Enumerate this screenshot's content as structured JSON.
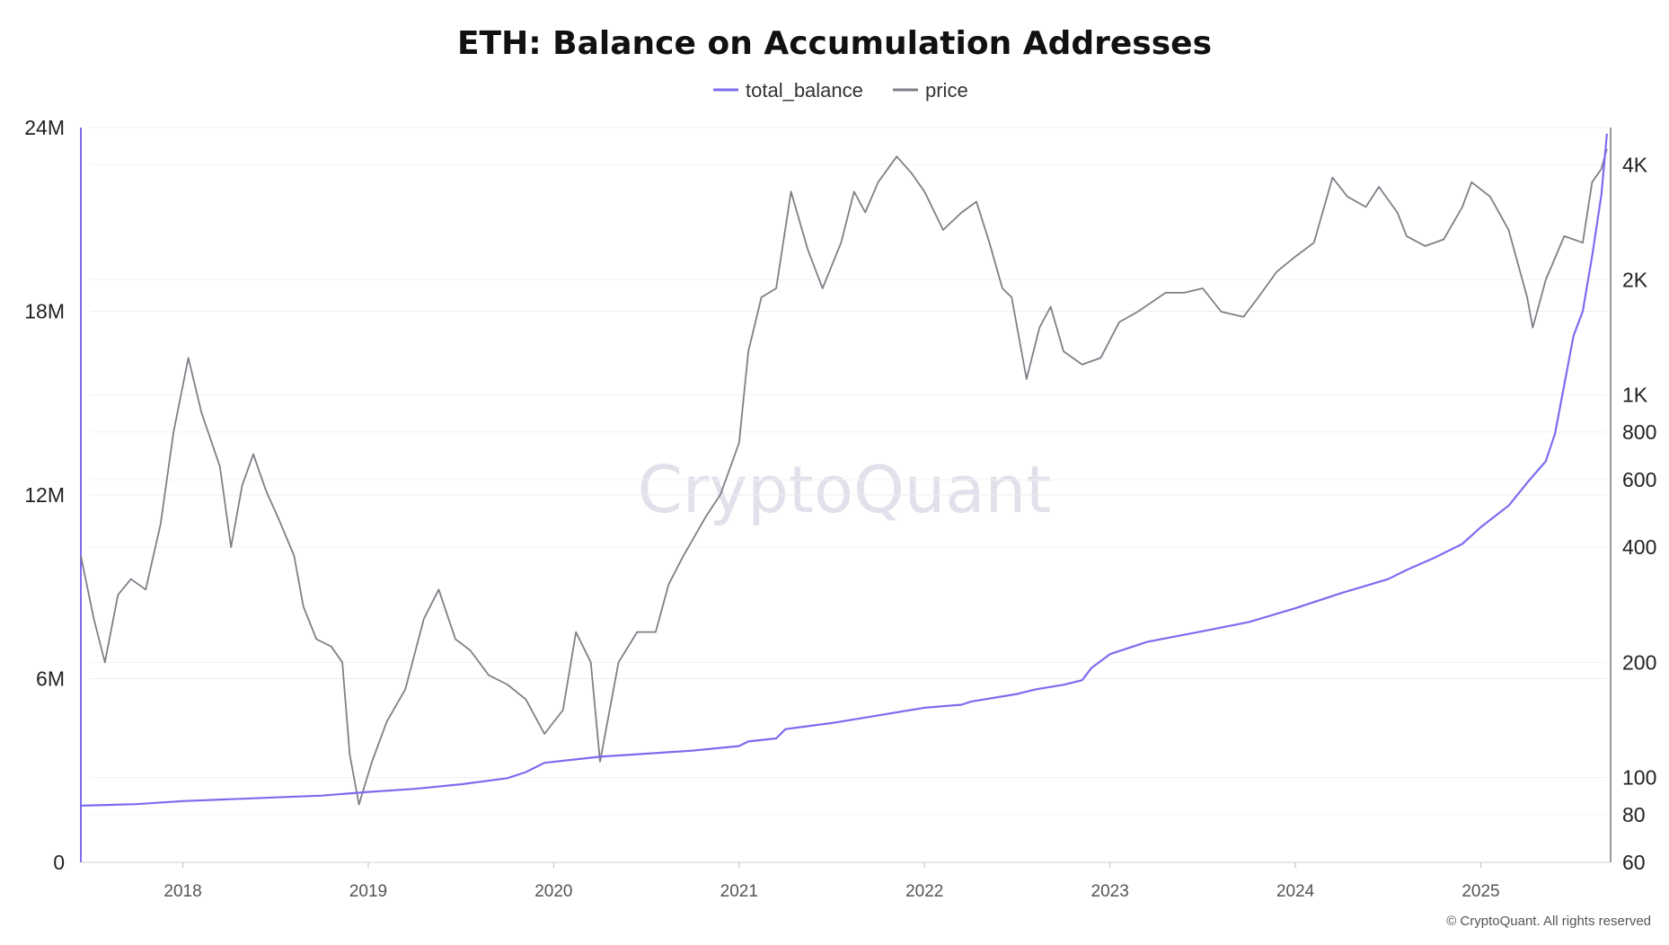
{
  "chart_data": {
    "type": "line",
    "title": "ETH: Balance on Accumulation Addresses",
    "legend_position": "top-center",
    "grid": true,
    "watermark": "CryptoQuant",
    "copyright": "© CryptoQuant. All rights reserved",
    "x_axis": {
      "range": [
        2017.45,
        2025.7
      ],
      "tick_values": [
        2018,
        2019,
        2020,
        2021,
        2022,
        2023,
        2024,
        2025
      ],
      "tick_labels": [
        "2018",
        "2019",
        "2020",
        "2021",
        "2022",
        "2023",
        "2024",
        "2025"
      ]
    },
    "y_left": {
      "range": [
        0,
        24000000
      ],
      "tick_values": [
        0,
        6000000,
        12000000,
        18000000,
        24000000
      ],
      "tick_labels": [
        "0",
        "6M",
        "12M",
        "18M",
        "24M"
      ]
    },
    "y_right": {
      "scale": "log",
      "range": [
        60,
        5000
      ],
      "tick_values": [
        60,
        80,
        100,
        200,
        400,
        600,
        800,
        1000,
        2000,
        4000
      ],
      "tick_labels": [
        "60",
        "80",
        "100",
        "200",
        "400",
        "600",
        "800",
        "1K",
        "2K",
        "4K"
      ]
    },
    "series": [
      {
        "name": "total_balance",
        "axis": "left",
        "color": "#7b6cf0",
        "x": [
          2017.45,
          2017.75,
          2018.0,
          2018.5,
          2018.75,
          2019.0,
          2019.25,
          2019.5,
          2019.75,
          2019.85,
          2019.95,
          2020.25,
          2020.5,
          2020.75,
          2021.0,
          2021.05,
          2021.2,
          2021.25,
          2021.5,
          2021.75,
          2022.0,
          2022.2,
          2022.25,
          2022.5,
          2022.6,
          2022.75,
          2022.85,
          2022.9,
          2023.0,
          2023.2,
          2023.5,
          2023.75,
          2024.0,
          2024.25,
          2024.5,
          2024.6,
          2024.75,
          2024.9,
          2025.0,
          2025.15,
          2025.25,
          2025.35,
          2025.4,
          2025.5,
          2025.55,
          2025.6,
          2025.65,
          2025.68
        ],
        "y": [
          1850000,
          1900000,
          2000000,
          2120000,
          2180000,
          2300000,
          2400000,
          2550000,
          2750000,
          2950000,
          3250000,
          3450000,
          3550000,
          3650000,
          3800000,
          3950000,
          4050000,
          4350000,
          4550000,
          4800000,
          5050000,
          5150000,
          5250000,
          5500000,
          5650000,
          5800000,
          5950000,
          6350000,
          6800000,
          7200000,
          7550000,
          7850000,
          8300000,
          8800000,
          9250000,
          9550000,
          9950000,
          10400000,
          10950000,
          11650000,
          12400000,
          13100000,
          14000000,
          17200000,
          18000000,
          19800000,
          21800000,
          23800000
        ]
      },
      {
        "name": "price",
        "axis": "right",
        "color": "#7f7f88",
        "x": [
          2017.45,
          2017.52,
          2017.58,
          2017.65,
          2017.72,
          2017.8,
          2017.88,
          2017.95,
          2018.03,
          2018.1,
          2018.2,
          2018.26,
          2018.32,
          2018.38,
          2018.45,
          2018.52,
          2018.6,
          2018.65,
          2018.72,
          2018.8,
          2018.86,
          2018.9,
          2018.95,
          2019.02,
          2019.1,
          2019.2,
          2019.3,
          2019.38,
          2019.47,
          2019.55,
          2019.65,
          2019.75,
          2019.85,
          2019.95,
          2020.05,
          2020.12,
          2020.2,
          2020.25,
          2020.35,
          2020.45,
          2020.55,
          2020.62,
          2020.7,
          2020.82,
          2020.9,
          2021.0,
          2021.05,
          2021.12,
          2021.2,
          2021.28,
          2021.37,
          2021.45,
          2021.55,
          2021.62,
          2021.68,
          2021.75,
          2021.85,
          2021.93,
          2022.0,
          2022.1,
          2022.2,
          2022.28,
          2022.35,
          2022.42,
          2022.47,
          2022.55,
          2022.62,
          2022.68,
          2022.75,
          2022.85,
          2022.95,
          2023.05,
          2023.15,
          2023.3,
          2023.4,
          2023.5,
          2023.6,
          2023.72,
          2023.8,
          2023.9,
          2024.0,
          2024.1,
          2024.2,
          2024.28,
          2024.38,
          2024.45,
          2024.55,
          2024.6,
          2024.7,
          2024.8,
          2024.9,
          2024.95,
          2025.05,
          2025.15,
          2025.25,
          2025.28,
          2025.35,
          2025.45,
          2025.55,
          2025.6,
          2025.65,
          2025.68
        ],
        "y": [
          380,
          260,
          200,
          300,
          330,
          310,
          460,
          800,
          1250,
          900,
          650,
          400,
          580,
          700,
          560,
          470,
          380,
          280,
          230,
          220,
          200,
          115,
          85,
          110,
          140,
          170,
          260,
          310,
          230,
          215,
          185,
          175,
          160,
          130,
          150,
          240,
          200,
          110,
          200,
          240,
          240,
          320,
          380,
          480,
          550,
          750,
          1300,
          1800,
          1900,
          3400,
          2400,
          1900,
          2500,
          3400,
          3000,
          3600,
          4200,
          3800,
          3400,
          2700,
          3000,
          3200,
          2500,
          1900,
          1800,
          1100,
          1500,
          1700,
          1300,
          1200,
          1250,
          1550,
          1650,
          1850,
          1850,
          1900,
          1650,
          1600,
          1800,
          2100,
          2300,
          2500,
          3700,
          3300,
          3100,
          3500,
          3000,
          2600,
          2450,
          2550,
          3100,
          3600,
          3300,
          2700,
          1800,
          1500,
          2000,
          2600,
          2500,
          3600,
          3900,
          4400
        ]
      }
    ]
  }
}
